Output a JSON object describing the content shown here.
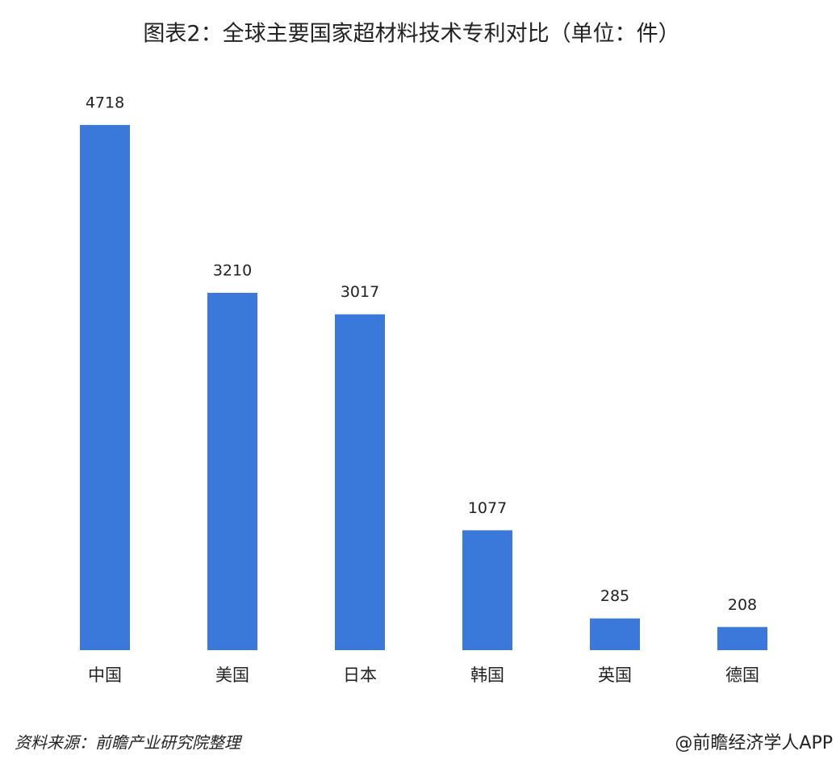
{
  "chart_data": {
    "type": "bar",
    "title": "图表2：全球主要国家超材料技术专利对比（单位：件）",
    "categories": [
      "中国",
      "美国",
      "日本",
      "韩国",
      "英国",
      "德国"
    ],
    "values": [
      4718,
      3210,
      3017,
      1077,
      285,
      208
    ],
    "color": "#3a79d9",
    "ylim": [
      0,
      5000
    ],
    "source": "资料来源：前瞻产业研究院整理",
    "credit": "@前瞻经济学人APP"
  }
}
